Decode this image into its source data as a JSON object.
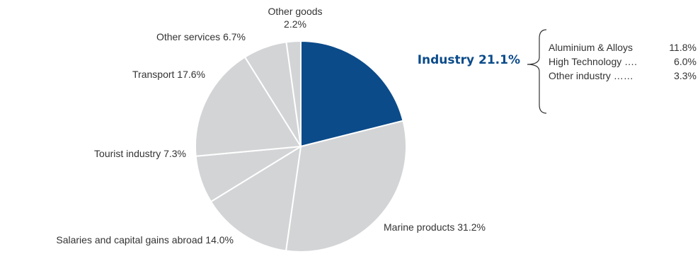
{
  "chart_data": {
    "type": "pie",
    "title": "",
    "slices": [
      {
        "label": "Industry",
        "value": 21.1,
        "display": "Industry 21.1%",
        "highlight": true
      },
      {
        "label": "Marine products",
        "value": 31.2,
        "display": "Marine products 31.2%"
      },
      {
        "label": "Salaries and capital gains abroad",
        "value": 14.0,
        "display": "Salaries and capital gains abroad 14.0%"
      },
      {
        "label": "Tourist industry",
        "value": 7.3,
        "display": "Tourist industry 7.3%"
      },
      {
        "label": "Transport",
        "value": 17.6,
        "display": "Transport 17.6%"
      },
      {
        "label": "Other services",
        "value": 6.7,
        "display": "Other services 6.7%"
      },
      {
        "label": "Other goods",
        "value": 2.2,
        "display": "Other goods 2.2%",
        "display_lines": [
          "Other goods",
          "2.2%"
        ]
      }
    ],
    "breakdown": {
      "parent": "Industry",
      "items": [
        {
          "label": "Aluminium & Alloys",
          "leader": "",
          "value": 11.8,
          "display": "11.8%"
        },
        {
          "label": "High Technology",
          "leader": "….",
          "value": 6.0,
          "display": "6.0%"
        },
        {
          "label": "Other industry",
          "leader": "……",
          "value": 3.3,
          "display": "3.3%"
        }
      ]
    },
    "colors": {
      "highlight": "#0b4b8a",
      "default": "#d3d4d6",
      "separator": "#ffffff",
      "label_highlight": "#0b4b8a",
      "label": "#333333"
    }
  }
}
